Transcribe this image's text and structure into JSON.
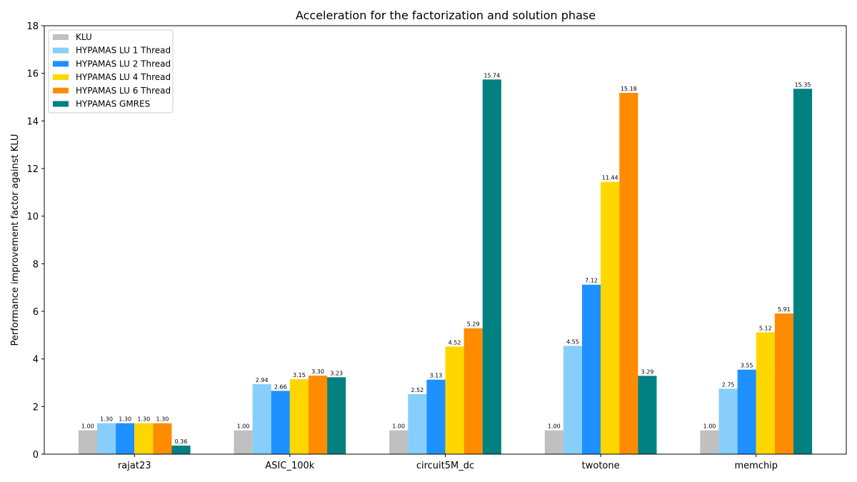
{
  "chart_data": {
    "type": "bar",
    "title": "Acceleration for the factorization and solution phase",
    "xlabel": "",
    "ylabel": "Performance improvement factor against KLU",
    "ylim": [
      0,
      18
    ],
    "yticks": [
      0,
      2,
      4,
      6,
      8,
      10,
      12,
      14,
      16,
      18
    ],
    "categories": [
      "rajat23",
      "ASIC_100k",
      "circuit5M_dc",
      "twotone",
      "memchip"
    ],
    "legend_position": "top-left",
    "grid": false,
    "series": [
      {
        "name": "KLU",
        "color": "#c0c0c0",
        "values": [
          1.0,
          1.0,
          1.0,
          1.0,
          1.0
        ]
      },
      {
        "name": "HYPAMAS LU 1 Thread",
        "color": "#87cefa",
        "values": [
          1.3,
          2.94,
          2.52,
          4.55,
          2.75
        ]
      },
      {
        "name": "HYPAMAS LU 2 Thread",
        "color": "#1e90ff",
        "values": [
          1.3,
          2.66,
          3.13,
          7.12,
          3.55
        ]
      },
      {
        "name": "HYPAMAS LU 4 Thread",
        "color": "#ffd700",
        "values": [
          1.3,
          3.15,
          4.52,
          11.44,
          5.12
        ]
      },
      {
        "name": "HYPAMAS LU 6 Thread",
        "color": "#ff8c00",
        "values": [
          1.3,
          3.3,
          5.29,
          15.18,
          5.91
        ]
      },
      {
        "name": "HYPAMAS GMRES",
        "color": "#008080",
        "values": [
          0.36,
          3.23,
          15.74,
          3.29,
          15.35
        ]
      }
    ]
  }
}
